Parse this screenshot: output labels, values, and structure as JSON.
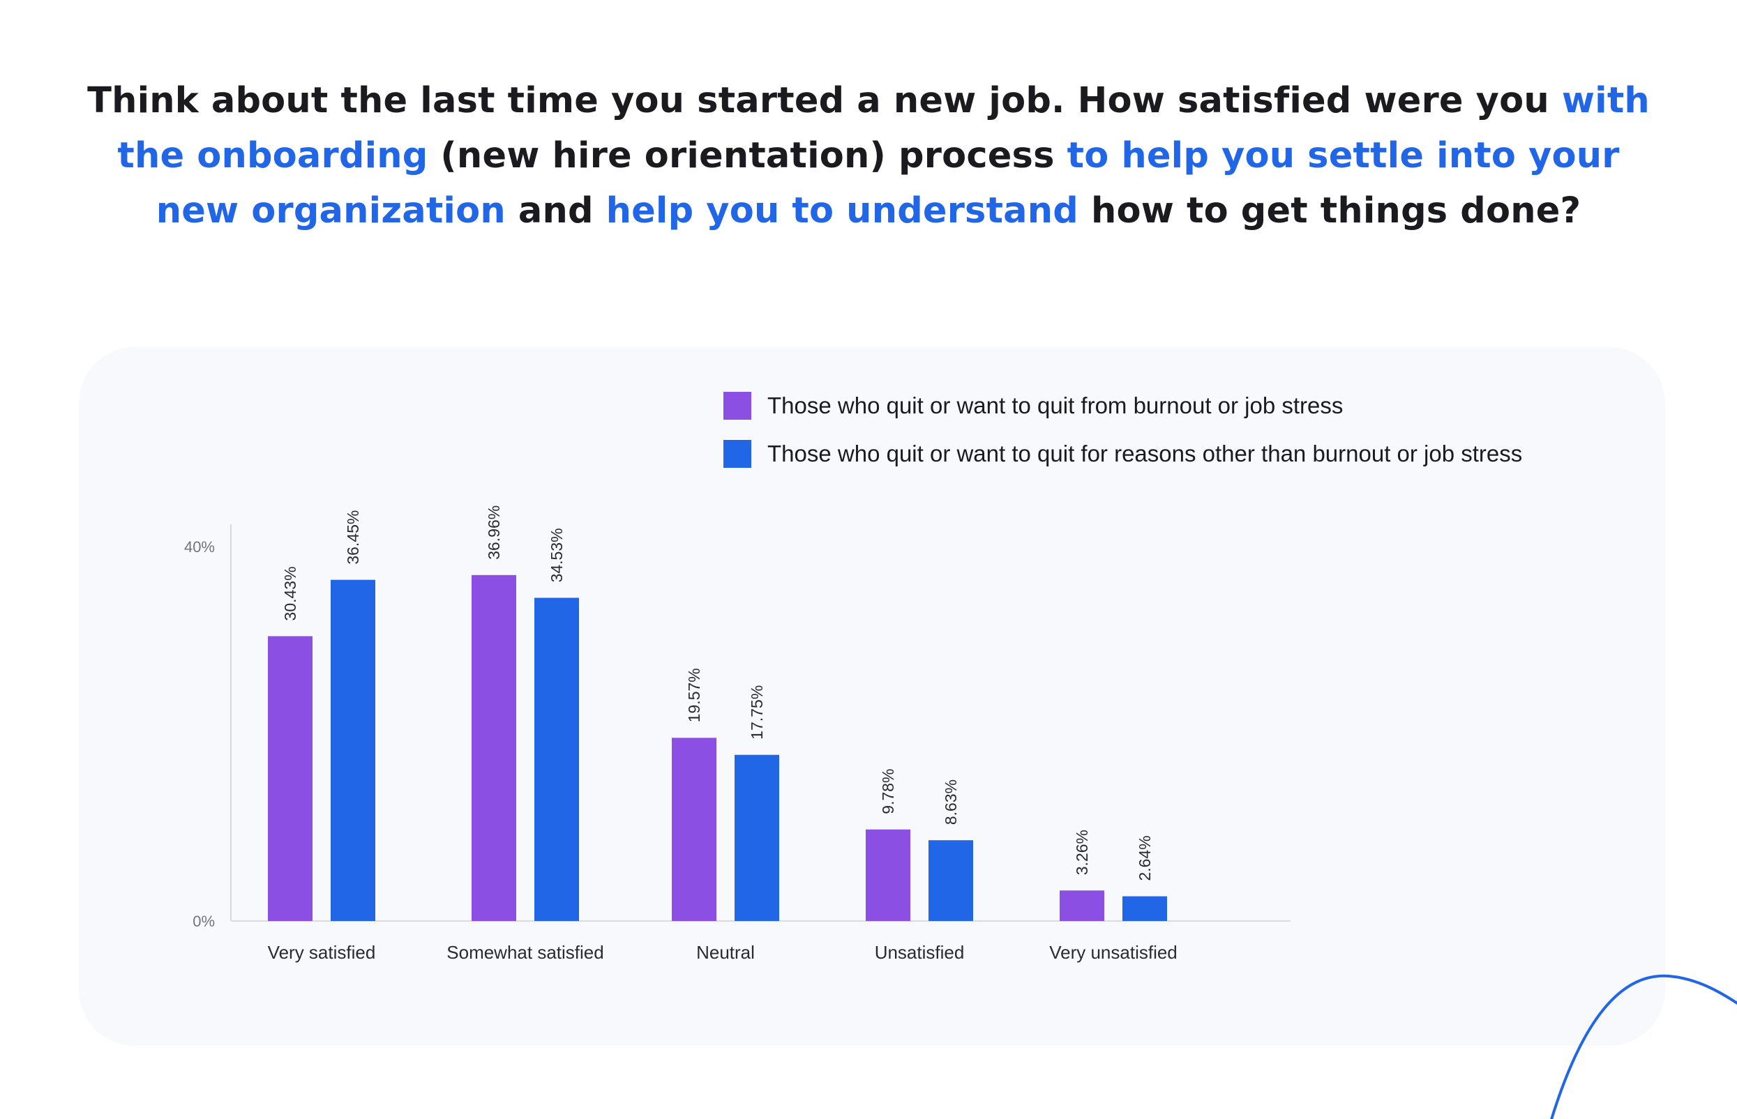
{
  "question": {
    "segments": [
      {
        "text": "Think about the last time you started a new job. How satisfied were you ",
        "highlight": false
      },
      {
        "text": "with the onboarding",
        "highlight": true
      },
      {
        "text": " (new hire orientation) process ",
        "highlight": false
      },
      {
        "text": "to help you settle into your new organization",
        "highlight": true
      },
      {
        "text": " and ",
        "highlight": false
      },
      {
        "text": "help you to understand",
        "highlight": true
      },
      {
        "text": " how to get things done?",
        "highlight": false
      }
    ]
  },
  "colors": {
    "text": "#1b1b1f",
    "highlight": "#2266e8",
    "card_background": "#f8f9fc",
    "axis": "#d9dbe3",
    "tick_label": "#707380",
    "decor_curve": "#2266e8"
  },
  "chart_data": {
    "type": "bar",
    "orientation": "vertical",
    "categories": [
      "Very satisfied",
      "Somewhat satisfied",
      "Neutral",
      "Unsatisfied",
      "Very unsatisfied"
    ],
    "series": [
      {
        "name": "Those who quit or want to quit from burnout or job stress",
        "color": "#8b4fe3",
        "values": [
          30.43,
          36.96,
          19.57,
          9.78,
          3.26
        ],
        "labels": [
          "30.43%",
          "36.96%",
          "19.57%",
          "9.78%",
          "3.26%"
        ]
      },
      {
        "name": "Those who quit or want to quit for reasons other than burnout or job stress",
        "color": "#2266e8",
        "values": [
          36.45,
          34.53,
          17.75,
          8.63,
          2.64
        ],
        "labels": [
          "36.45%",
          "34.53%",
          "17.75%",
          "8.63%",
          "2.64%"
        ]
      }
    ],
    "ylim": [
      0,
      42
    ],
    "y_ticks": [
      {
        "value": 0,
        "label": "0%"
      },
      {
        "value": 40,
        "label": "40%"
      }
    ],
    "xlabel": "",
    "ylabel": "",
    "grid": false,
    "legend": "top-right",
    "data_labels": "rotated vertical above bars"
  }
}
